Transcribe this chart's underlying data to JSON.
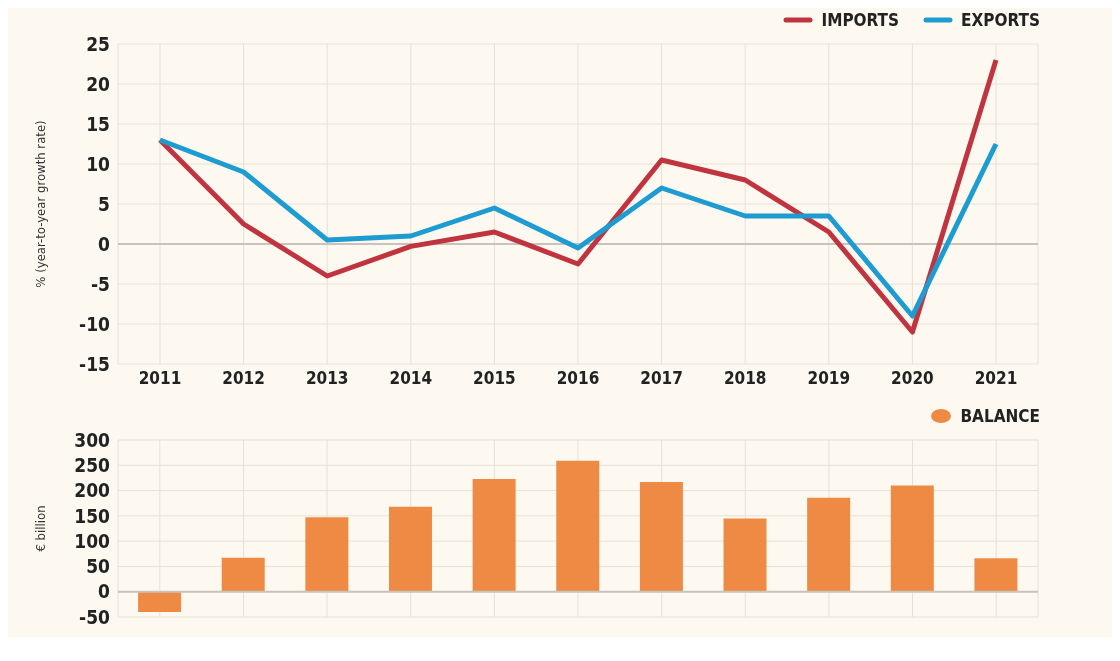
{
  "chart_data": [
    {
      "type": "line",
      "ylabel": "% (year-to-year growth rate)",
      "categories": [
        "2011",
        "2012",
        "2013",
        "2014",
        "2015",
        "2016",
        "2017",
        "2018",
        "2019",
        "2020",
        "2021"
      ],
      "series": [
        {
          "name": "IMPORTS",
          "color": "#c0343f",
          "values": [
            13,
            2.5,
            -4,
            -0.3,
            1.5,
            -2.5,
            10.5,
            8,
            1.5,
            -11,
            23
          ]
        },
        {
          "name": "EXPORTS",
          "color": "#1e9bd0",
          "values": [
            13,
            9,
            0.5,
            1,
            4.5,
            -0.5,
            7,
            3.5,
            3.5,
            -9,
            12.5
          ]
        }
      ],
      "ylim": [
        -15,
        25
      ],
      "yticks": [
        -15,
        -10,
        -5,
        0,
        5,
        10,
        15,
        20,
        25
      ],
      "grid": true,
      "legend": "top right",
      "marker": "none"
    },
    {
      "type": "bar",
      "ylabel": "€ billion",
      "categories": [
        "2011",
        "2012",
        "2013",
        "2014",
        "2015",
        "2016",
        "2017",
        "2018",
        "2019",
        "2020",
        "2021"
      ],
      "series": [
        {
          "name": "BALANCE",
          "color": "#ef8a45",
          "values": [
            -40,
            67,
            147,
            168,
            223,
            259,
            217,
            145,
            186,
            210,
            66
          ]
        }
      ],
      "ylim": [
        -50,
        300
      ],
      "yticks": [
        -50,
        0,
        50,
        100,
        150,
        200,
        250,
        300
      ],
      "grid": true,
      "legend": "top right",
      "tick_labels": "y"
    }
  ]
}
